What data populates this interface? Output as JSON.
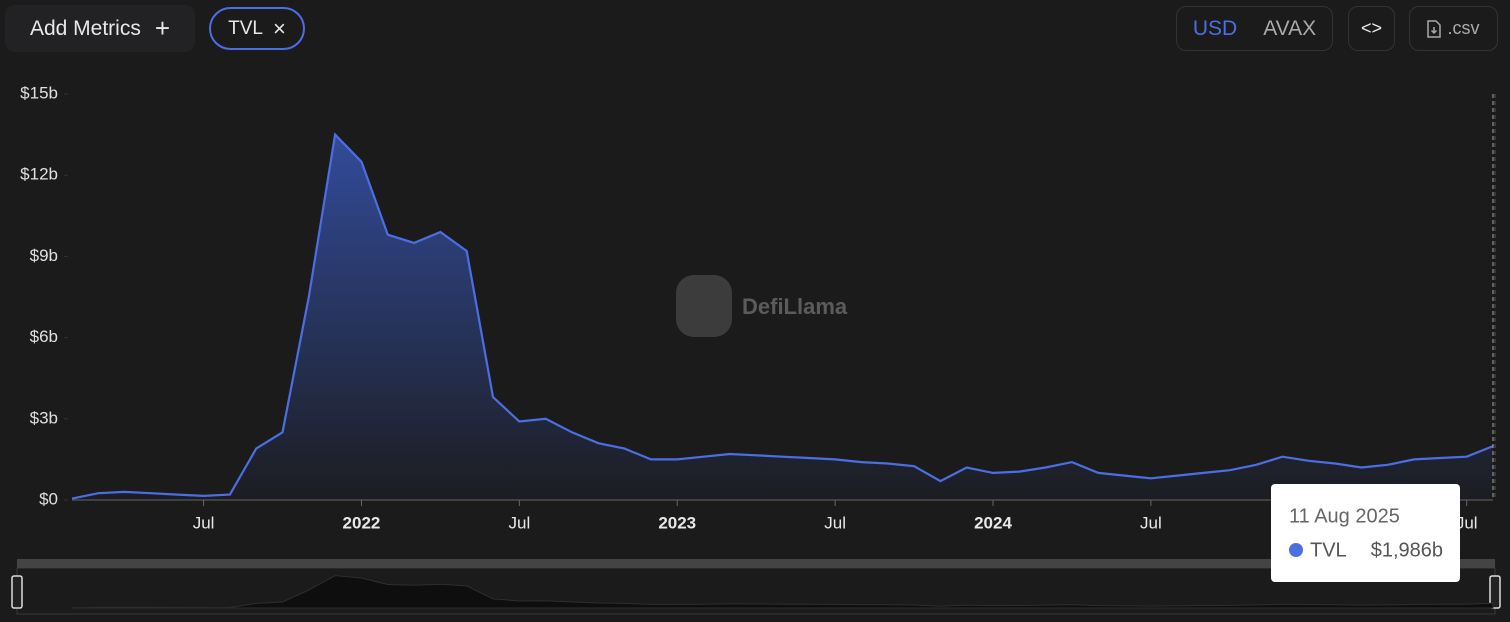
{
  "toolbar": {
    "add_metrics": "Add Metrics",
    "add_icon": "+",
    "metric": "TVL",
    "remove_icon": "×",
    "currencies": [
      "USD",
      "AVAX"
    ],
    "embed": "<>",
    "csv": ".csv"
  },
  "watermark": "DefiLlama",
  "chart_data": {
    "type": "line",
    "area": true,
    "x": [
      "2021-02",
      "2021-03",
      "2021-04",
      "2021-05",
      "2021-06",
      "2021-07",
      "2021-08",
      "2021-09",
      "2021-10",
      "2021-11",
      "2021-12",
      "2022-01",
      "2022-02",
      "2022-03",
      "2022-04",
      "2022-05",
      "2022-06",
      "2022-07",
      "2022-08",
      "2022-09",
      "2022-10",
      "2022-11",
      "2022-12",
      "2023-01",
      "2023-02",
      "2023-03",
      "2023-04",
      "2023-05",
      "2023-06",
      "2023-07",
      "2023-08",
      "2023-09",
      "2023-10",
      "2023-11",
      "2023-12",
      "2024-01",
      "2024-02",
      "2024-03",
      "2024-04",
      "2024-05",
      "2024-06",
      "2024-07",
      "2024-08",
      "2024-09",
      "2024-10",
      "2024-11",
      "2024-12",
      "2025-01",
      "2025-02",
      "2025-03",
      "2025-04",
      "2025-05",
      "2025-06",
      "2025-07",
      "2025-08"
    ],
    "series": [
      {
        "name": "TVL",
        "color": "#4b6fe3",
        "values": [
          0.05,
          0.25,
          0.3,
          0.25,
          0.2,
          0.15,
          0.2,
          1.9,
          2.5,
          7.5,
          13.5,
          12.5,
          9.8,
          9.5,
          9.9,
          9.2,
          3.8,
          2.9,
          3.0,
          2.5,
          2.1,
          1.9,
          1.5,
          1.5,
          1.6,
          1.7,
          1.65,
          1.6,
          1.55,
          1.5,
          1.4,
          1.35,
          1.25,
          0.7,
          1.2,
          1.0,
          1.05,
          1.2,
          1.4,
          1.0,
          0.9,
          0.8,
          0.9,
          1.0,
          1.1,
          1.3,
          1.6,
          1.45,
          1.35,
          1.2,
          1.3,
          1.5,
          1.55,
          1.6,
          1.99
        ]
      }
    ],
    "xlim": [
      "2021-02",
      "2025-08"
    ],
    "xticks": [
      {
        "value": "2021-07",
        "label": "Jul"
      },
      {
        "value": "2022-01",
        "label": "2022"
      },
      {
        "value": "2022-07",
        "label": "Jul"
      },
      {
        "value": "2023-01",
        "label": "2023"
      },
      {
        "value": "2023-07",
        "label": "Jul"
      },
      {
        "value": "2024-01",
        "label": "2024"
      },
      {
        "value": "2024-07",
        "label": "Jul"
      },
      {
        "value": "2025-07",
        "label": "Jul"
      }
    ],
    "ylim": [
      0,
      15
    ],
    "yticks": [
      {
        "value": 0,
        "label": "$0"
      },
      {
        "value": 3,
        "label": "$3b"
      },
      {
        "value": 6,
        "label": "$6b"
      },
      {
        "value": 9,
        "label": "$9b"
      },
      {
        "value": 12,
        "label": "$12b"
      },
      {
        "value": 15,
        "label": "$15b"
      }
    ],
    "tooltip": {
      "date": "11 Aug 2025",
      "series": "TVL",
      "value": "$1,986b"
    }
  }
}
